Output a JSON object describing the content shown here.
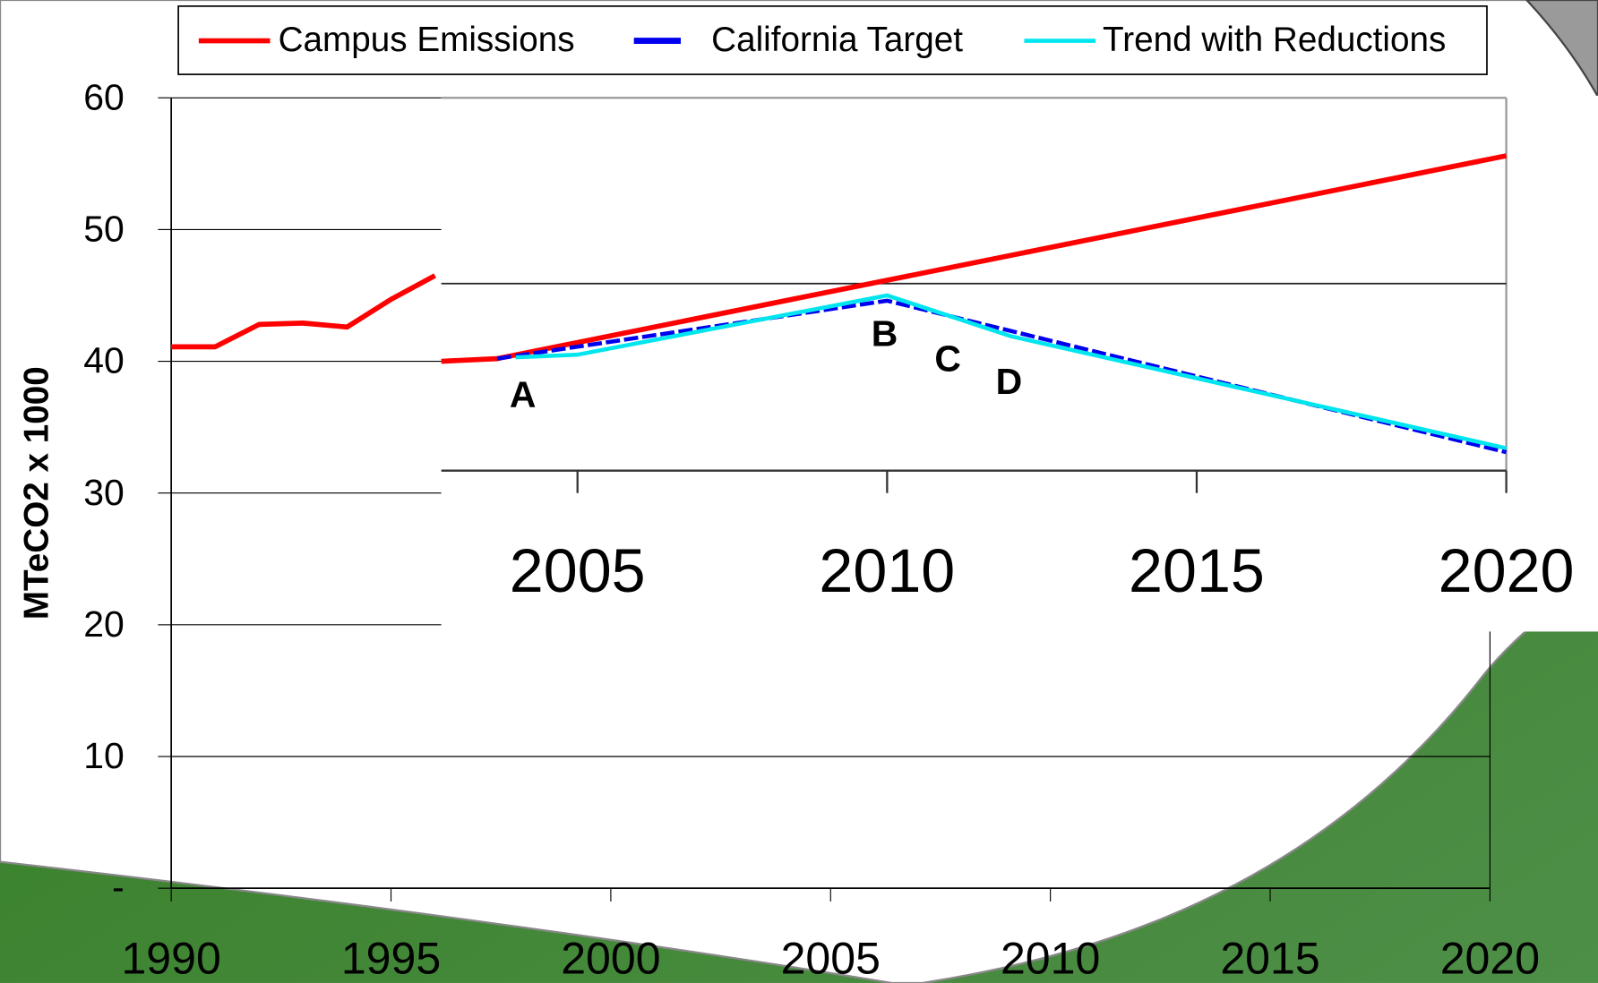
{
  "chart_data": [
    {
      "type": "line",
      "y_label": "MTeCO2 x 1000",
      "xlim": [
        1990,
        2020
      ],
      "xticks": [
        1990,
        1995,
        2000,
        2005,
        2010,
        2015,
        2020
      ],
      "ylim": [
        0,
        60
      ],
      "yticks": [
        {
          "value": 0,
          "label": "-"
        },
        10,
        20,
        30,
        40,
        50,
        60
      ],
      "grid": true,
      "series": [
        {
          "name": "Campus Emissions",
          "color": "#ff0000",
          "x": [
            1990,
            1991,
            1992,
            1993,
            1994,
            1995,
            1996
          ],
          "values": [
            41.1,
            41.1,
            42.8,
            42.9,
            42.6,
            44.7,
            46.5
          ]
        }
      ]
    },
    {
      "type": "line",
      "xlim": [
        2002.8,
        2020
      ],
      "xticks": [
        2005,
        2010,
        2015,
        2020
      ],
      "ylim": [
        31.7,
        60
      ],
      "hline": 45.9,
      "annotations": [
        "A",
        "B",
        "C",
        "D"
      ],
      "series": [
        {
          "name": "Campus Emissions",
          "color": "#ff0000",
          "x": [
            2002.8,
            2003.7,
            2020
          ],
          "values": [
            40.0,
            40.2,
            55.6
          ]
        },
        {
          "name": "California Target",
          "color": "#0000ee",
          "x": [
            2003.7,
            2010,
            2020
          ],
          "values": [
            40.2,
            44.6,
            33.1
          ]
        },
        {
          "name": "Trend with Reductions",
          "color": "#00e5ee",
          "x": [
            2004,
            2005,
            2010,
            2012,
            2020
          ],
          "values": [
            40.3,
            40.5,
            45.0,
            41.9,
            33.4
          ]
        }
      ]
    }
  ]
}
